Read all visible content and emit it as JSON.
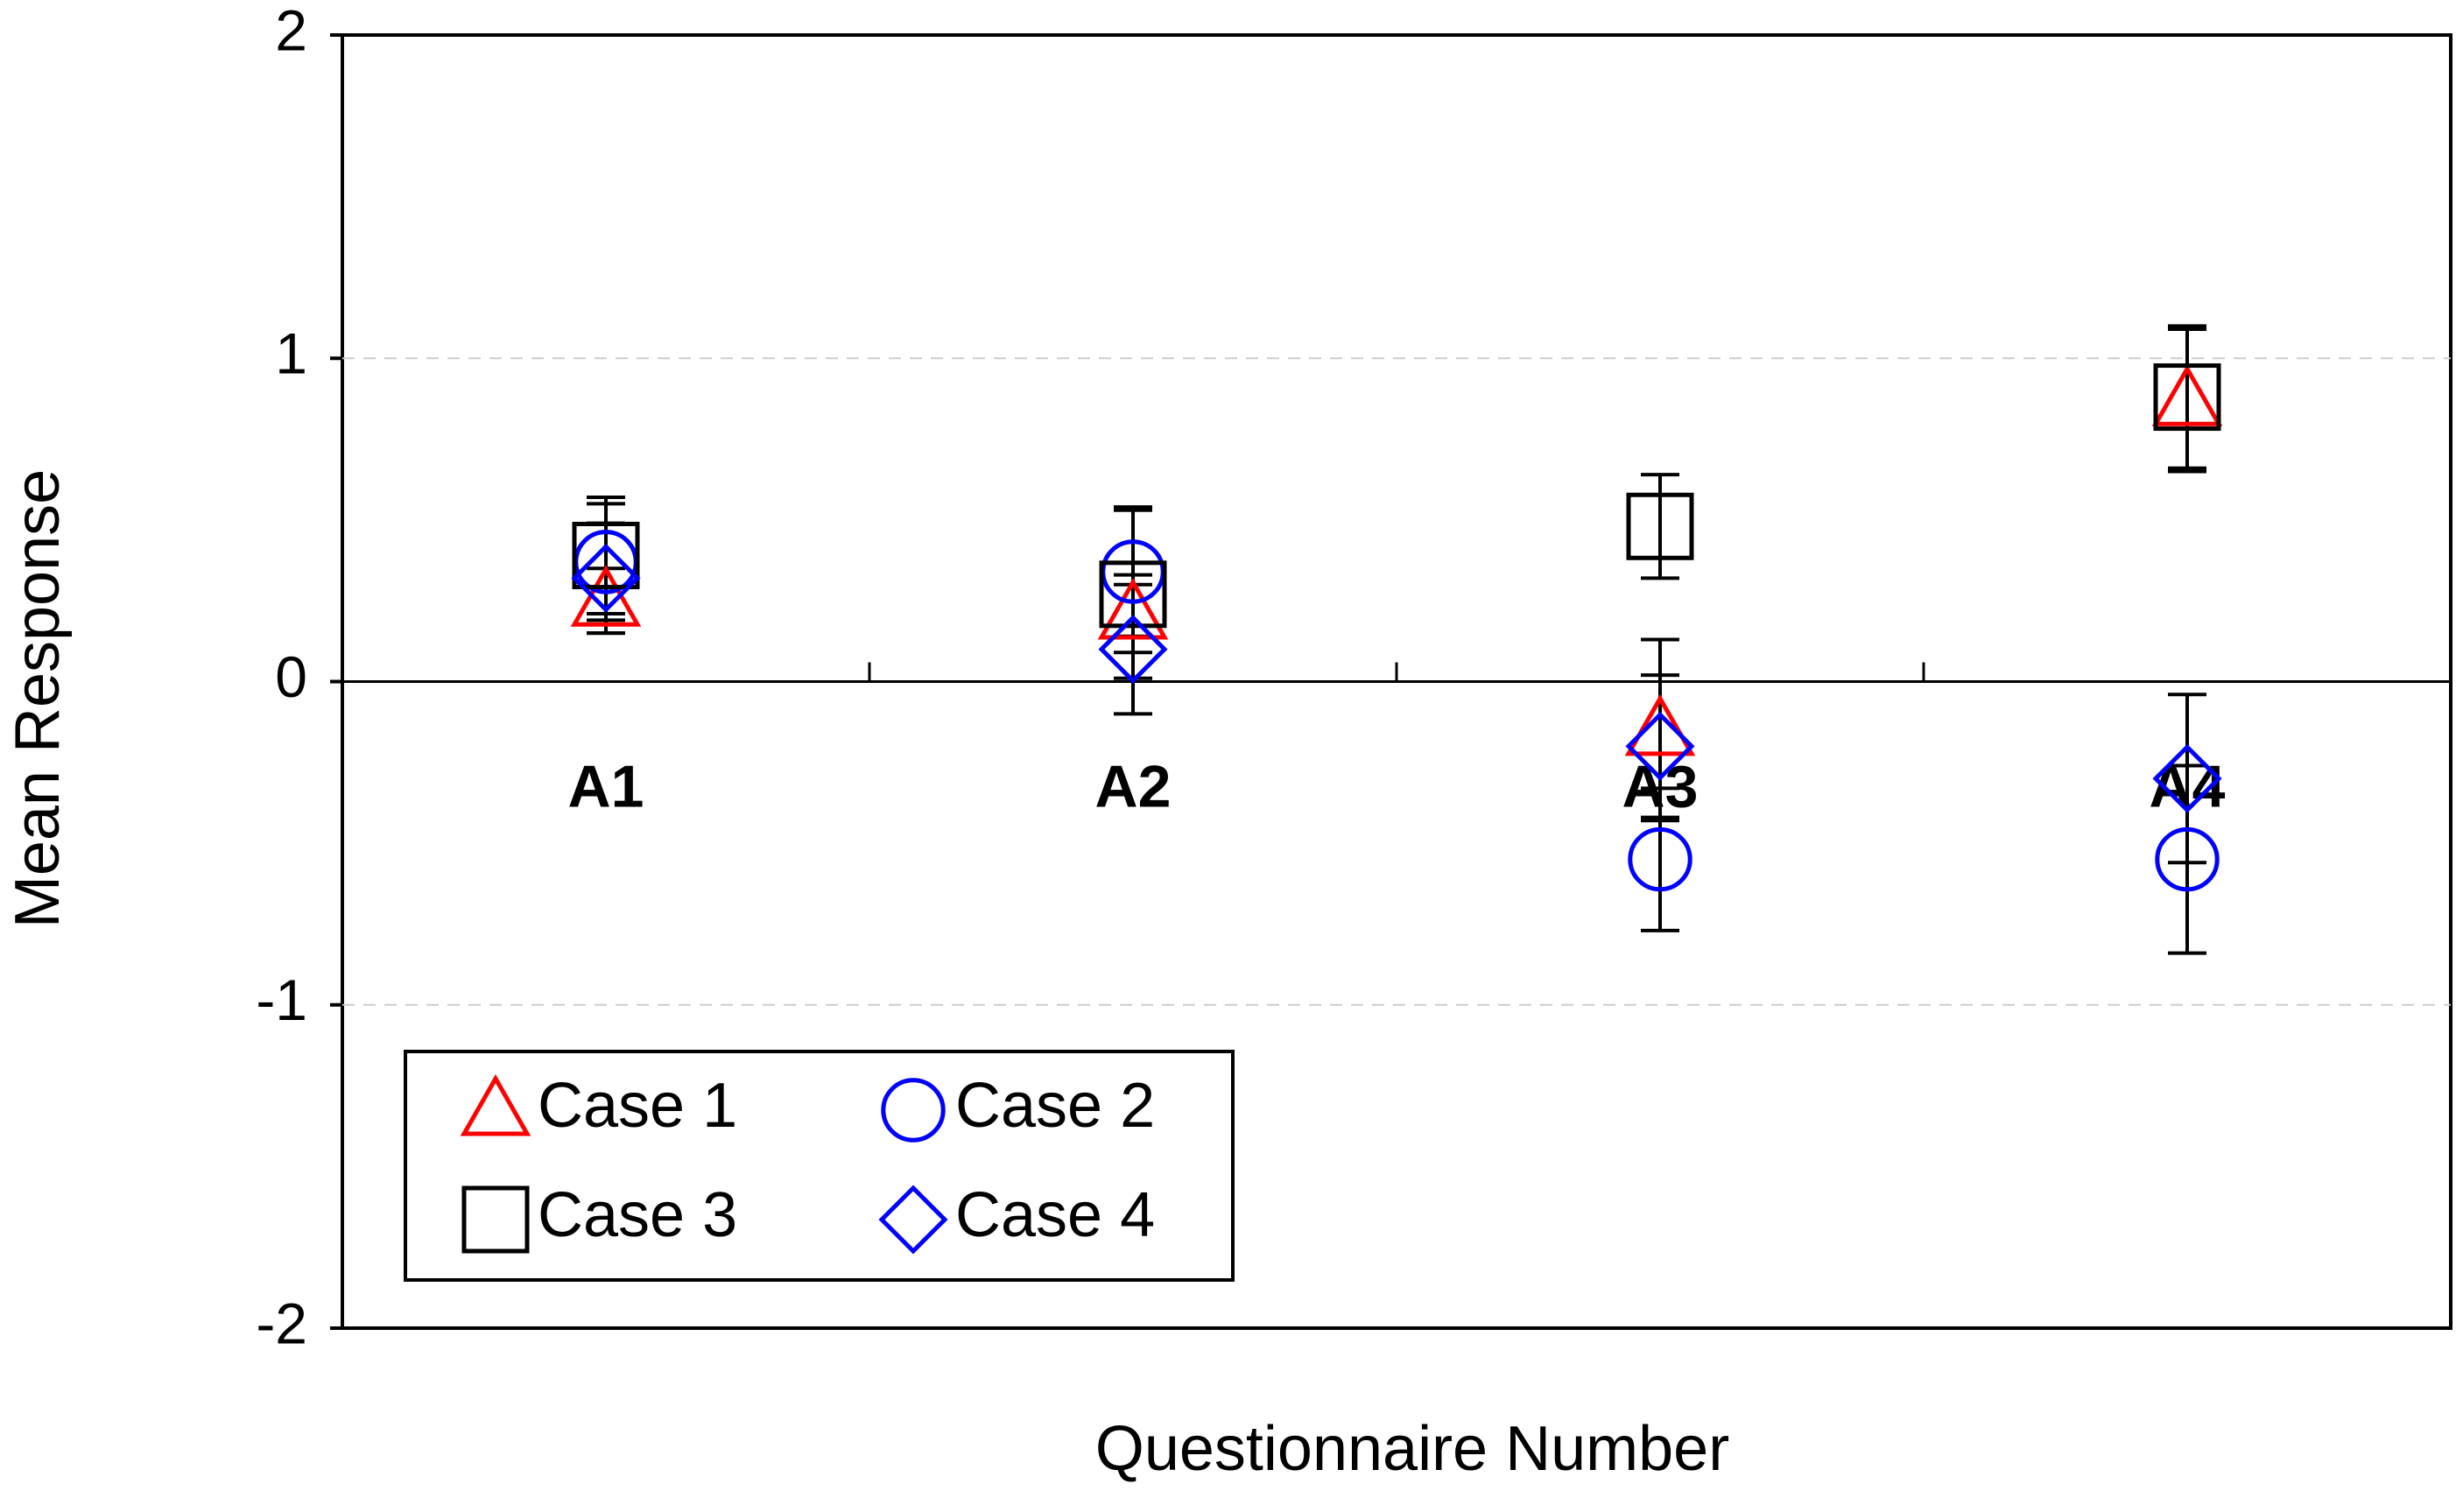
{
  "chart_data": {
    "type": "errorbar-scatter",
    "x_label": "Questionnaire Number",
    "y_label": "Mean Response",
    "categories": [
      "A1",
      "A2",
      "A3",
      "A4"
    ],
    "series": [
      {
        "name": "Case 1",
        "color": "#ff0000",
        "marker": "triangle",
        "values": [
          0.25,
          0.21,
          -0.15,
          0.87
        ],
        "errors": [
          0.1,
          0.12,
          0.28,
          0.22
        ]
      },
      {
        "name": "Case 2",
        "color": "#0000ff",
        "marker": "circle",
        "values": [
          0.37,
          0.34,
          -0.55,
          -0.55
        ],
        "errors": [
          0.18,
          0.2,
          0.22,
          0.29
        ]
      },
      {
        "name": "Case 3",
        "color": "#000000",
        "marker": "square",
        "values": [
          0.39,
          0.27,
          0.48,
          0.88
        ],
        "errors": [
          0.18,
          0.26,
          0.16,
          0.22
        ]
      },
      {
        "name": "Case 4",
        "color": "#0000ff",
        "marker": "diamond",
        "values": [
          0.32,
          0.1,
          -0.2,
          -0.3
        ],
        "errors": [
          0.17,
          0.2,
          0.22,
          0.26
        ]
      }
    ],
    "ylim": [
      -2,
      2
    ],
    "yticks": [
      -2,
      -1,
      0,
      1,
      2
    ],
    "grid": true,
    "legend": "lower left"
  }
}
